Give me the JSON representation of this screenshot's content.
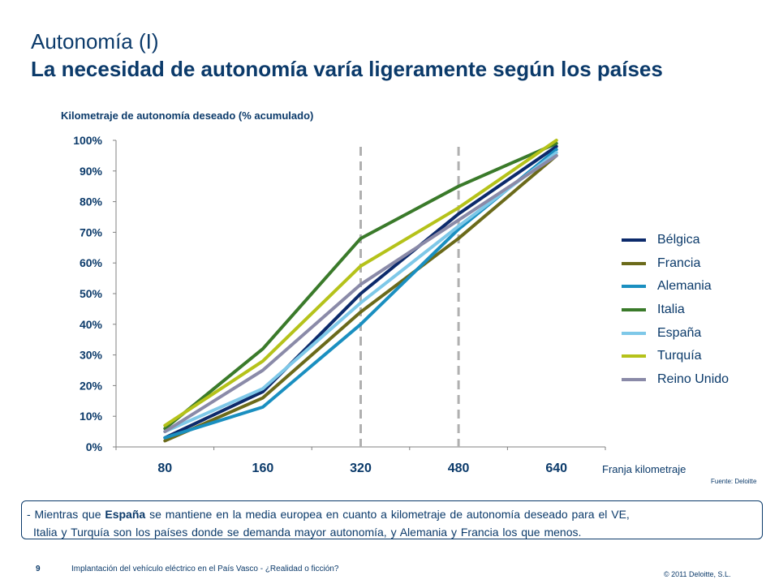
{
  "slide": {
    "title_line1": "Autonomía (I)",
    "title_line2": "La necesidad de autonomía varía ligeramente según los países"
  },
  "chart_data": {
    "type": "line",
    "title": "Kilometraje de autonomía deseado (% acumulado)",
    "xlabel": "Franja kilometraje",
    "ylabel": "",
    "categories": [
      "80",
      "160",
      "320",
      "480",
      "640"
    ],
    "yticks": [
      "0%",
      "10%",
      "20%",
      "30%",
      "40%",
      "50%",
      "60%",
      "70%",
      "80%",
      "90%",
      "100%"
    ],
    "ylim": [
      0,
      100
    ],
    "vertical_reference_lines": [
      "320",
      "480"
    ],
    "legend_position": "right",
    "series": [
      {
        "name": "Bélgica",
        "color": "#0c2a6b",
        "values": [
          3,
          18,
          50,
          76,
          98
        ]
      },
      {
        "name": "Francia",
        "color": "#6b6a1a",
        "values": [
          2,
          16,
          44,
          68,
          95
        ]
      },
      {
        "name": "Alemania",
        "color": "#1a8fc0",
        "values": [
          3,
          13,
          40,
          71,
          97
        ]
      },
      {
        "name": "Italia",
        "color": "#3a7a2a",
        "values": [
          6,
          32,
          68,
          85,
          99
        ]
      },
      {
        "name": "España",
        "color": "#7ec8e8",
        "values": [
          5,
          19,
          47,
          72,
          96
        ]
      },
      {
        "name": "Turquía",
        "color": "#b5c21a",
        "values": [
          7,
          28,
          59,
          78,
          100
        ]
      },
      {
        "name": "Reino Unido",
        "color": "#8a8aa8",
        "values": [
          5,
          25,
          53,
          74,
          95
        ]
      }
    ]
  },
  "source_text": "Fuente: Deloitte",
  "note": {
    "prefix": "- Mientras que ",
    "bold": "España",
    "rest_line1": " se mantiene en la media europea en cuanto a kilometraje de autonomía deseado para el VE,",
    "line2": "Italia y Turquía son los países donde se demanda mayor autonomía, y Alemania y Francia los que menos."
  },
  "footer": {
    "page_number": "9",
    "text": "Implantación del vehículo eléctrico en el País Vasco - ¿Realidad o ficción?",
    "copyright": "© 2011 Deloitte, S.L."
  }
}
